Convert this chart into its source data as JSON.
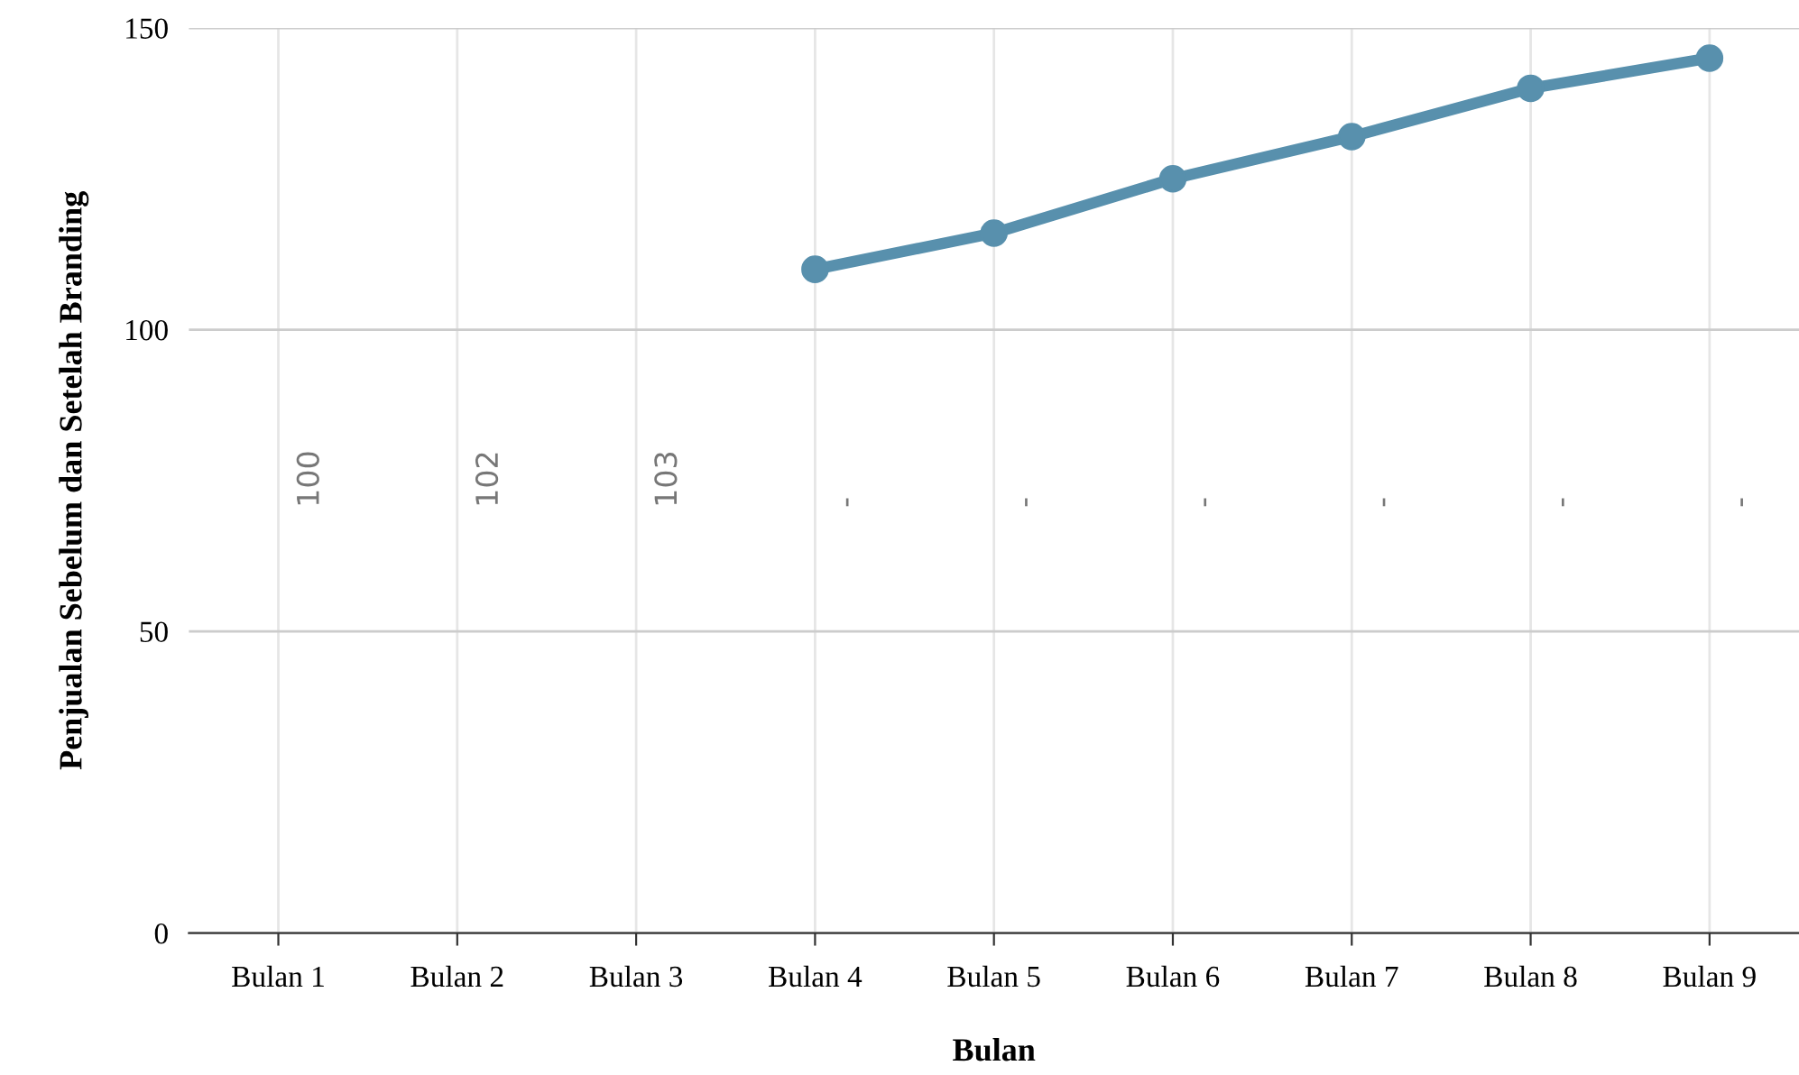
{
  "chart_data": {
    "type": "line",
    "xlabel": "Bulan",
    "ylabel": "Penjualan Sebelum dan Setelah Branding",
    "categories": [
      "Bulan 1",
      "Bulan 2",
      "Bulan 3",
      "Bulan 4",
      "Bulan 5",
      "Bulan 6",
      "Bulan 7",
      "Bulan 8",
      "Bulan 9"
    ],
    "series": [
      {
        "color": "#5890ad",
        "values": [
          null,
          null,
          null,
          110,
          116,
          125,
          132,
          140,
          145
        ]
      }
    ],
    "ylim": [
      0,
      150
    ],
    "yticks": [
      0,
      50,
      100,
      150
    ],
    "grid": true,
    "marker": "circle",
    "line_style": "solid",
    "annotations": [
      "100",
      "102",
      "103",
      "-",
      "-",
      "-",
      "-",
      "-",
      "-"
    ]
  }
}
